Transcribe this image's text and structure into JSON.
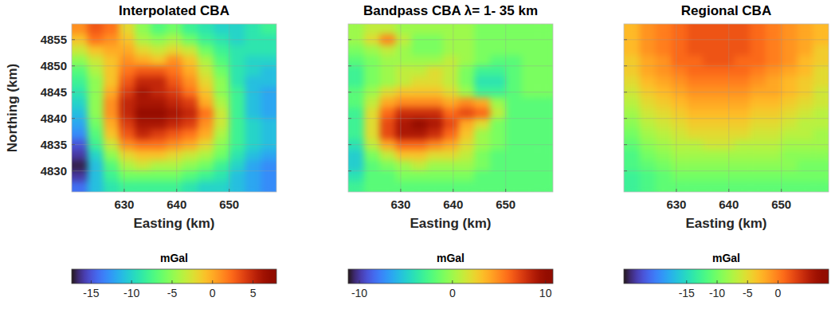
{
  "chart_data": [
    {
      "type": "heatmap",
      "title": "Interpolated CBA",
      "x_label": "Easting (km)",
      "y_label": "Northing (km)",
      "xlim": [
        620,
        659
      ],
      "ylim": [
        4826,
        4858
      ],
      "xticks": [
        630,
        640,
        650
      ],
      "yticks": [
        4830,
        4835,
        4840,
        4845,
        4850,
        4855
      ],
      "grid": true,
      "tick_labels": true,
      "x": [
        621.5,
        624.5,
        627.5,
        630.5,
        633.5,
        636.5,
        639.5,
        642.5,
        645.5,
        648.5,
        651.5,
        654.5,
        657.5
      ],
      "y": [
        4857,
        4855,
        4853,
        4851,
        4849,
        4847,
        4845,
        4843,
        4841,
        4839,
        4837,
        4835,
        4833,
        4831,
        4829,
        4827
      ],
      "values": [
        [
          1,
          3,
          2,
          -2,
          -5,
          -7,
          -6,
          -8,
          -9,
          -10,
          -10,
          -9,
          -8
        ],
        [
          -1,
          2,
          1,
          -1,
          -4,
          -5,
          -4,
          -6,
          -8,
          -9,
          -10,
          -9,
          -9
        ],
        [
          -3,
          -1,
          0,
          0,
          -2,
          -3,
          -2,
          -3,
          -6,
          -8,
          -9,
          -9,
          -9
        ],
        [
          -5,
          -3,
          -1,
          1,
          0,
          -1,
          1,
          -1,
          -4,
          -7,
          -9,
          -10,
          -10
        ],
        [
          -7,
          -4,
          -1,
          2,
          3,
          3,
          2,
          0,
          -3,
          -6,
          -9,
          -10,
          -11
        ],
        [
          -8,
          -5,
          -1,
          3,
          5,
          5,
          3,
          1,
          -2,
          -5,
          -9,
          -11,
          -11
        ],
        [
          -9,
          -5,
          0,
          4,
          6,
          5,
          4,
          2,
          -1,
          -5,
          -8,
          -11,
          -12
        ],
        [
          -10,
          -5,
          1,
          5,
          6,
          6,
          5,
          4,
          0,
          -4,
          -8,
          -11,
          -12
        ],
        [
          -11,
          -5,
          1,
          5,
          7,
          7,
          6,
          5,
          2,
          -3,
          -8,
          -11,
          -12
        ],
        [
          -12,
          -6,
          0,
          4,
          6,
          6,
          5,
          4,
          1,
          -3,
          -8,
          -10,
          -11
        ],
        [
          -13,
          -7,
          -1,
          3,
          5,
          4,
          3,
          2,
          0,
          -4,
          -8,
          -10,
          -11
        ],
        [
          -15,
          -8,
          -3,
          1,
          2,
          2,
          1,
          0,
          -2,
          -5,
          -8,
          -10,
          -11
        ],
        [
          -16,
          -10,
          -5,
          -2,
          -1,
          -1,
          -2,
          -3,
          -4,
          -6,
          -9,
          -11,
          -12
        ],
        [
          -17,
          -11,
          -7,
          -4,
          -3,
          -4,
          -4,
          -5,
          -6,
          -8,
          -10,
          -12,
          -13
        ],
        [
          -16,
          -11,
          -8,
          -6,
          -6,
          -6,
          -6,
          -7,
          -8,
          -9,
          -11,
          -12,
          -13
        ],
        [
          -14,
          -11,
          -9,
          -8,
          -8,
          -8,
          -8,
          -9,
          -10,
          -10,
          -11,
          -12,
          -13
        ]
      ],
      "colorbar": {
        "label": "mGal",
        "range": [
          -17.4,
          7.9
        ],
        "ticks": [
          -15,
          -10,
          -5,
          0,
          5
        ]
      }
    },
    {
      "type": "heatmap",
      "title": "Bandpass CBA λ=  1- 35 km",
      "x_label": "Easting (km)",
      "xlim": [
        620,
        659
      ],
      "ylim": [
        4826,
        4858
      ],
      "xticks": [
        630,
        640,
        650
      ],
      "yticks": [
        4830,
        4835,
        4840,
        4845,
        4850,
        4855
      ],
      "grid": true,
      "tick_labels": "x",
      "x": [
        621.5,
        624.5,
        627.5,
        630.5,
        633.5,
        636.5,
        639.5,
        642.5,
        645.5,
        648.5,
        651.5,
        654.5,
        657.5
      ],
      "y": [
        4857,
        4855,
        4853,
        4851,
        4849,
        4847,
        4845,
        4843,
        4841,
        4839,
        4837,
        4835,
        4833,
        4831,
        4829,
        4827
      ],
      "values": [
        [
          0,
          1,
          1,
          0,
          0,
          0,
          0,
          0,
          -1,
          -1,
          -1,
          -1,
          -1
        ],
        [
          0,
          2,
          5,
          1,
          -1,
          -1,
          0,
          0,
          -1,
          -1,
          -1,
          -1,
          -1
        ],
        [
          -1,
          0,
          1,
          0,
          -1,
          -1,
          0,
          0,
          -1,
          -1,
          -1,
          -1,
          -1
        ],
        [
          -2,
          -1,
          0,
          0,
          0,
          0,
          1,
          0,
          -1,
          -2,
          -2,
          -1,
          -1
        ],
        [
          -3,
          -1,
          0,
          1,
          1,
          2,
          1,
          -1,
          -3,
          -3,
          -2,
          -1,
          -1
        ],
        [
          -3,
          -1,
          0,
          1,
          2,
          2,
          1,
          -1,
          -4,
          -4,
          -2,
          -1,
          -1
        ],
        [
          -2,
          0,
          2,
          3,
          3,
          3,
          2,
          0,
          -3,
          -3,
          -2,
          -1,
          -1
        ],
        [
          -2,
          1,
          4,
          5,
          5,
          5,
          4,
          5,
          4,
          0,
          -2,
          -2,
          -2
        ],
        [
          -3,
          2,
          6,
          8,
          8,
          8,
          6,
          7,
          6,
          1,
          -2,
          -2,
          -2
        ],
        [
          -3,
          2,
          7,
          9,
          10,
          9,
          7,
          4,
          2,
          -1,
          -2,
          -2,
          -2
        ],
        [
          -3,
          2,
          7,
          9,
          9,
          8,
          6,
          3,
          0,
          -1,
          -2,
          -2,
          -2
        ],
        [
          -4,
          1,
          4,
          6,
          6,
          5,
          4,
          2,
          0,
          -1,
          -2,
          -2,
          -2
        ],
        [
          -5,
          -1,
          1,
          3,
          3,
          2,
          2,
          1,
          -1,
          -2,
          -2,
          -2,
          -2
        ],
        [
          -5,
          -2,
          -1,
          0,
          1,
          0,
          0,
          0,
          -1,
          -2,
          -2,
          -2,
          -2
        ],
        [
          -4,
          -2,
          -2,
          -1,
          -1,
          -1,
          -1,
          -1,
          -2,
          -2,
          -2,
          -2,
          -2
        ],
        [
          -3,
          -2,
          -2,
          -2,
          -2,
          -2,
          -2,
          -2,
          -2,
          -2,
          -2,
          -2,
          -2
        ]
      ],
      "colorbar": {
        "label": "mGal",
        "range": [
          -11.2,
          10.8
        ],
        "ticks": [
          -10,
          0,
          10
        ]
      }
    },
    {
      "type": "heatmap",
      "title": "Regional CBA",
      "x_label": "Easting (km)",
      "xlim": [
        620,
        659
      ],
      "ylim": [
        4826,
        4858
      ],
      "xticks": [
        630,
        640,
        650
      ],
      "yticks": [
        4830,
        4835,
        4840,
        4845,
        4850,
        4855
      ],
      "grid": true,
      "tick_labels": "x",
      "x": [
        621.5,
        624.5,
        627.5,
        630.5,
        633.5,
        636.5,
        639.5,
        642.5,
        645.5,
        648.5,
        651.5,
        654.5,
        657.5
      ],
      "y": [
        4857,
        4855,
        4853,
        4851,
        4849,
        4847,
        4845,
        4843,
        4841,
        4839,
        4837,
        4835,
        4833,
        4831,
        4829,
        4827
      ],
      "values": [
        [
          -3,
          -1,
          0,
          1,
          2,
          2,
          2,
          2,
          1,
          0,
          -1,
          -2,
          -3
        ],
        [
          -3,
          -1,
          0,
          1,
          2,
          2,
          2,
          2,
          1,
          0,
          -1,
          -2,
          -3
        ],
        [
          -3,
          -1,
          0,
          1,
          2,
          2,
          2,
          2,
          1,
          0,
          -1,
          -2,
          -4
        ],
        [
          -4,
          -2,
          -1,
          1,
          1,
          2,
          2,
          1,
          1,
          0,
          -1,
          -3,
          -4
        ],
        [
          -4,
          -2,
          -1,
          0,
          1,
          1,
          1,
          1,
          0,
          -1,
          -2,
          -3,
          -5
        ],
        [
          -5,
          -3,
          -2,
          -1,
          0,
          0,
          0,
          0,
          -1,
          -2,
          -3,
          -4,
          -5
        ],
        [
          -6,
          -4,
          -3,
          -2,
          -1,
          -1,
          -1,
          -1,
          -2,
          -2,
          -3,
          -4,
          -6
        ],
        [
          -7,
          -5,
          -4,
          -3,
          -2,
          -2,
          -2,
          -2,
          -3,
          -3,
          -4,
          -5,
          -6
        ],
        [
          -8,
          -6,
          -5,
          -4,
          -3,
          -3,
          -3,
          -3,
          -4,
          -4,
          -5,
          -6,
          -7
        ],
        [
          -9,
          -7,
          -6,
          -5,
          -4,
          -4,
          -4,
          -4,
          -5,
          -5,
          -6,
          -7,
          -7
        ],
        [
          -10,
          -8,
          -7,
          -6,
          -5,
          -5,
          -5,
          -5,
          -6,
          -6,
          -7,
          -7,
          -8
        ],
        [
          -11,
          -9,
          -8,
          -7,
          -7,
          -6,
          -6,
          -7,
          -7,
          -7,
          -8,
          -8,
          -8
        ],
        [
          -12,
          -10,
          -9,
          -8,
          -8,
          -8,
          -8,
          -8,
          -8,
          -8,
          -9,
          -9,
          -9
        ],
        [
          -12,
          -11,
          -10,
          -9,
          -9,
          -9,
          -9,
          -9,
          -9,
          -9,
          -9,
          -10,
          -10
        ],
        [
          -13,
          -12,
          -11,
          -10,
          -10,
          -10,
          -10,
          -10,
          -10,
          -10,
          -10,
          -10,
          -10
        ],
        [
          -13,
          -12,
          -11,
          -11,
          -11,
          -11,
          -11,
          -11,
          -11,
          -11,
          -11,
          -11,
          -11
        ]
      ],
      "colorbar": {
        "label": "mGal",
        "range": [
          -25.3,
          8.3
        ],
        "ticks": [
          -15,
          -10,
          -5,
          0
        ]
      }
    }
  ]
}
